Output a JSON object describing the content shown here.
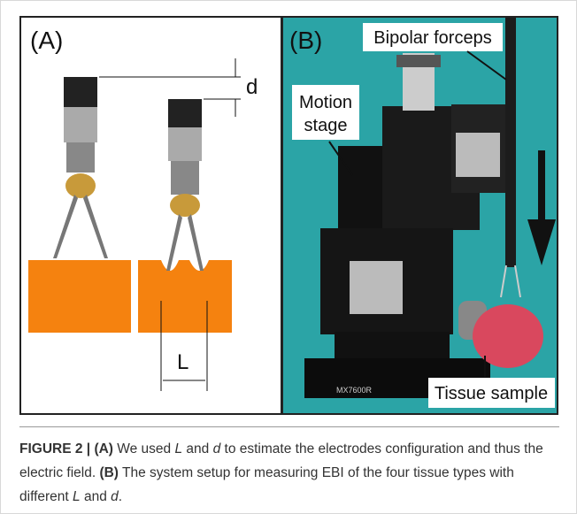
{
  "panel_a": {
    "label": "(A)",
    "dimension_d": "d",
    "dimension_l": "L"
  },
  "panel_b": {
    "label": "(B)",
    "forceps_label": "Bipolar forceps",
    "stage_label": [
      "Motion",
      "stage"
    ],
    "sample_label": "Tissue sample",
    "stage_model": "MX7600R"
  },
  "caption": {
    "figure": "FIGURE 2 | ",
    "a": "(A)",
    "t1": " We used ",
    "l1": "L",
    "t2": " and ",
    "d1": "d",
    "t3": " to estimate the electrodes configuration and thus the electric field. ",
    "b": "(B)",
    "t4": " The system setup for measuring EBI of the four tissue types with different ",
    "l2": "L",
    "t5": " and ",
    "d2": "d",
    "t6": "."
  }
}
